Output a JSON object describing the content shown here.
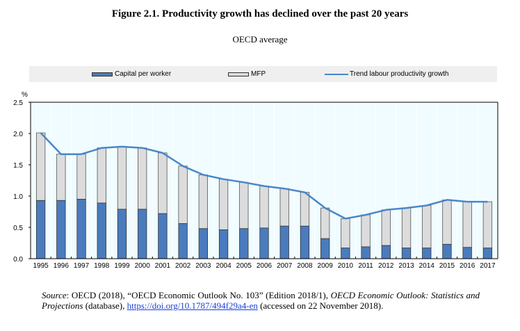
{
  "figure": {
    "title": "Figure 2.1. Productivity growth has declined over the past 20 years",
    "subtitle": "OECD average"
  },
  "source": {
    "label": "Source",
    "text_1": ": OECD (2018), “OECD Economic Outlook No. 103” (Edition 2018/1), ",
    "italic_title": "OECD Economic Outlook: Statistics and Projections",
    "text_2": " (database), ",
    "link": "https://doi.org/10.1787/494f29a4-en",
    "text_3": " (accessed on 22 November 2018)."
  },
  "colors": {
    "capital": "#4a7bbd",
    "mfp": "#dcdcdc",
    "trend": "#4a86c8",
    "plot_bg": "#f0fcff",
    "legend_bg": "#efefef"
  },
  "chart_data": {
    "type": "bar",
    "stacked": true,
    "title": "Figure 2.1. Productivity growth has declined over the past 20 years",
    "subtitle": "OECD average",
    "xlabel": "",
    "ylabel": "%",
    "ylim": [
      0,
      2.5
    ],
    "yticks": [
      "0.0",
      "0.5",
      "1.0",
      "1.5",
      "2.0",
      "2.5"
    ],
    "ytick_values": [
      0,
      0.5,
      1.0,
      1.5,
      2.0,
      2.5
    ],
    "legend_position": "top",
    "grid": "vertical",
    "categories": [
      "1995",
      "1996",
      "1997",
      "1998",
      "1999",
      "2000",
      "2001",
      "2002",
      "2003",
      "2004",
      "2005",
      "2006",
      "2007",
      "2008",
      "2009",
      "2010",
      "2011",
      "2012",
      "2013",
      "2014",
      "2015",
      "2016",
      "2017"
    ],
    "series": [
      {
        "name": "Capital per worker",
        "type": "bar",
        "values": [
          0.93,
          0.93,
          0.95,
          0.89,
          0.79,
          0.79,
          0.72,
          0.56,
          0.48,
          0.46,
          0.48,
          0.49,
          0.52,
          0.52,
          0.32,
          0.17,
          0.19,
          0.21,
          0.17,
          0.17,
          0.23,
          0.18,
          0.17
        ]
      },
      {
        "name": "MFP",
        "type": "bar",
        "values": [
          1.08,
          0.74,
          0.72,
          0.88,
          1.0,
          0.98,
          0.97,
          0.92,
          0.86,
          0.81,
          0.74,
          0.67,
          0.6,
          0.54,
          0.49,
          0.47,
          0.51,
          0.57,
          0.64,
          0.68,
          0.71,
          0.73,
          0.74
        ]
      },
      {
        "name": "Trend labour productivity growth",
        "type": "line",
        "values": [
          2.01,
          1.67,
          1.67,
          1.77,
          1.79,
          1.77,
          1.69,
          1.48,
          1.34,
          1.27,
          1.22,
          1.16,
          1.12,
          1.06,
          0.81,
          0.64,
          0.7,
          0.78,
          0.81,
          0.85,
          0.94,
          0.91,
          0.91
        ]
      }
    ]
  }
}
